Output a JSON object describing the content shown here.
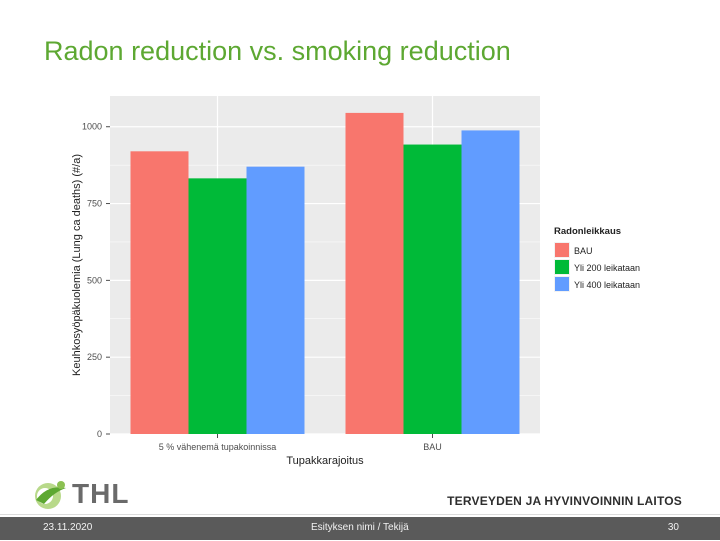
{
  "slide": {
    "title": "Radon reduction vs. smoking reduction",
    "logo_text": "THL",
    "organization": "TERVEYDEN JA HYVINVOINNIN LAITOS",
    "footer_date": "23.11.2020",
    "footer_center": "Esityksen nimi / Tekijä",
    "footer_page": "30"
  },
  "colors": {
    "title": "#5da832",
    "panel": "#ebebeb",
    "grid": "#ffffff",
    "footer": "#5a5a5a"
  },
  "chart_data": {
    "type": "bar",
    "title": "",
    "xlabel": "Tupakkarajoitus",
    "ylabel": "Keuhkosyöpäkuolemia (Lung ca deaths) (#/a)",
    "categories": [
      "5 % vähenemä tupakoinnissa",
      "BAU"
    ],
    "ylim": [
      0,
      1100
    ],
    "yticks": [
      0,
      250,
      500,
      750,
      1000
    ],
    "grid": true,
    "legend": {
      "title": "Radonleikkaus",
      "position": "right"
    },
    "series": [
      {
        "name": "BAU",
        "color": "#f8766d",
        "values": [
          920,
          1045
        ]
      },
      {
        "name": "Yli 200 leikataan",
        "color": "#00ba38",
        "values": [
          832,
          942
        ]
      },
      {
        "name": "Yli 400 leikataan",
        "color": "#619cff",
        "values": [
          870,
          988
        ]
      }
    ]
  }
}
